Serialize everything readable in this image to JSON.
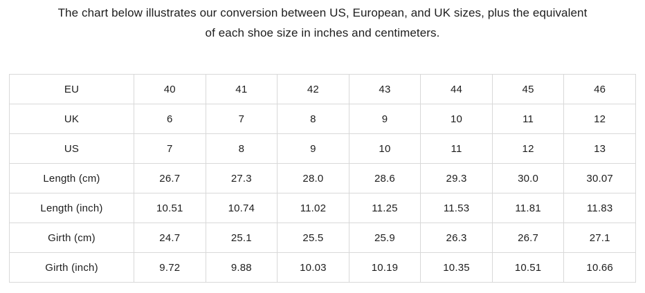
{
  "intro": {
    "lines": [
      "The chart below illustrates our conversion between US, European, and UK sizes, plus the equivalent",
      "of each shoe size in inches and centimeters."
    ]
  },
  "chart_data": {
    "type": "table",
    "title": "The chart below illustrates our conversion between US, European, and UK sizes, plus the equivalent of each shoe size in inches and centimeters.",
    "row_headers": [
      "EU",
      "UK",
      "US",
      "Length (cm)",
      "Length (inch)",
      "Girth (cm)",
      "Girth (inch)"
    ],
    "rows": [
      {
        "label": "EU",
        "values": [
          "40",
          "41",
          "42",
          "43",
          "44",
          "45",
          "46"
        ]
      },
      {
        "label": "UK",
        "values": [
          "6",
          "7",
          "8",
          "9",
          "10",
          "11",
          "12"
        ]
      },
      {
        "label": "US",
        "values": [
          "7",
          "8",
          "9",
          "10",
          "11",
          "12",
          "13"
        ]
      },
      {
        "label": "Length (cm)",
        "values": [
          "26.7",
          "27.3",
          "28.0",
          "28.6",
          "29.3",
          "30.0",
          "30.07"
        ]
      },
      {
        "label": "Length (inch)",
        "values": [
          "10.51",
          "10.74",
          "11.02",
          "11.25",
          "11.53",
          "11.81",
          "11.83"
        ]
      },
      {
        "label": "Girth (cm)",
        "values": [
          "24.7",
          "25.1",
          "25.5",
          "25.9",
          "26.3",
          "26.7",
          "27.1"
        ]
      },
      {
        "label": "Girth (inch)",
        "values": [
          "9.72",
          "9.88",
          "10.03",
          "10.19",
          "10.35",
          "10.51",
          "10.66"
        ]
      }
    ]
  },
  "colors": {
    "background": "#ffffff",
    "text": "#1d1d1d",
    "table_border": "#d8d8d8"
  }
}
